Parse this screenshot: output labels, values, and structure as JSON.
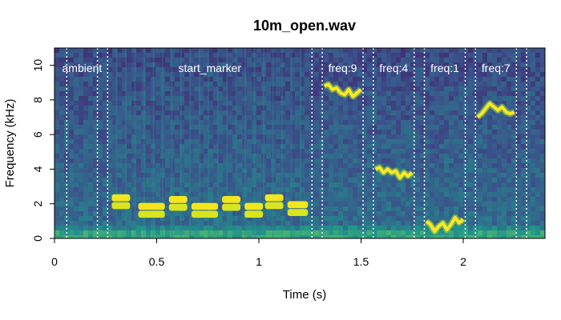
{
  "chart_data": {
    "type": "heatmap",
    "title": "10m_open.wav",
    "xlabel": "Time (s)",
    "ylabel": "Frequency (kHz)",
    "xlim": [
      0,
      2.4
    ],
    "ylim": [
      0,
      11
    ],
    "xticks": [
      0,
      0.5,
      1,
      1.5,
      2
    ],
    "xtick_labels": [
      "0",
      "0.5",
      "1",
      "1.5",
      "2"
    ],
    "yticks": [
      0,
      2,
      4,
      6,
      8,
      10
    ],
    "ytick_labels": [
      "0",
      "2",
      "4",
      "6",
      "8",
      "10"
    ],
    "colormap": "viridis",
    "segments": [
      {
        "label": "ambient",
        "start": 0.06,
        "end": 0.21
      },
      {
        "label": "start_marker",
        "start": 0.26,
        "end": 1.26
      },
      {
        "label": "freq:9",
        "start": 1.31,
        "end": 1.51
      },
      {
        "label": "freq:4",
        "start": 1.56,
        "end": 1.76
      },
      {
        "label": "freq:1",
        "start": 1.81,
        "end": 2.01
      },
      {
        "label": "freq:7",
        "start": 2.06,
        "end": 2.26
      },
      {
        "label": "",
        "start": 2.31,
        "end": 2.4
      }
    ],
    "tone_traces": [
      {
        "segment": "freq:9",
        "points": [
          [
            1.32,
            8.8
          ],
          [
            1.34,
            8.9
          ],
          [
            1.36,
            8.6
          ],
          [
            1.38,
            8.7
          ],
          [
            1.4,
            8.4
          ],
          [
            1.42,
            8.3
          ],
          [
            1.44,
            8.6
          ],
          [
            1.46,
            8.2
          ],
          [
            1.48,
            8.4
          ],
          [
            1.5,
            8.6
          ]
        ]
      },
      {
        "segment": "freq:4",
        "points": [
          [
            1.57,
            4.0
          ],
          [
            1.59,
            4.1
          ],
          [
            1.61,
            3.8
          ],
          [
            1.63,
            4.0
          ],
          [
            1.65,
            3.8
          ],
          [
            1.67,
            3.9
          ],
          [
            1.69,
            3.5
          ],
          [
            1.71,
            3.8
          ],
          [
            1.73,
            3.6
          ],
          [
            1.75,
            3.8
          ]
        ]
      },
      {
        "segment": "freq:1",
        "points": [
          [
            1.82,
            1.0
          ],
          [
            1.84,
            0.8
          ],
          [
            1.86,
            0.4
          ],
          [
            1.88,
            0.7
          ],
          [
            1.9,
            0.9
          ],
          [
            1.92,
            0.5
          ],
          [
            1.94,
            0.8
          ],
          [
            1.96,
            1.2
          ],
          [
            1.98,
            0.9
          ],
          [
            2.0,
            1.1
          ]
        ]
      },
      {
        "segment": "freq:7",
        "points": [
          [
            2.07,
            7.0
          ],
          [
            2.09,
            7.2
          ],
          [
            2.11,
            7.5
          ],
          [
            2.13,
            7.8
          ],
          [
            2.15,
            7.6
          ],
          [
            2.17,
            7.4
          ],
          [
            2.19,
            7.6
          ],
          [
            2.21,
            7.3
          ],
          [
            2.23,
            7.2
          ],
          [
            2.25,
            7.3
          ]
        ]
      }
    ],
    "marker_blobs": [
      {
        "t0": 0.28,
        "t1": 0.37,
        "f": 2.3
      },
      {
        "t0": 0.41,
        "t1": 0.54,
        "f": 1.8
      },
      {
        "t0": 0.56,
        "t1": 0.65,
        "f": 2.2
      },
      {
        "t0": 0.67,
        "t1": 0.8,
        "f": 1.8
      },
      {
        "t0": 0.82,
        "t1": 0.91,
        "f": 2.2
      },
      {
        "t0": 0.93,
        "t1": 1.02,
        "f": 1.8
      },
      {
        "t0": 1.03,
        "t1": 1.12,
        "f": 2.3
      },
      {
        "t0": 1.14,
        "t1": 1.24,
        "f": 1.9
      }
    ]
  }
}
